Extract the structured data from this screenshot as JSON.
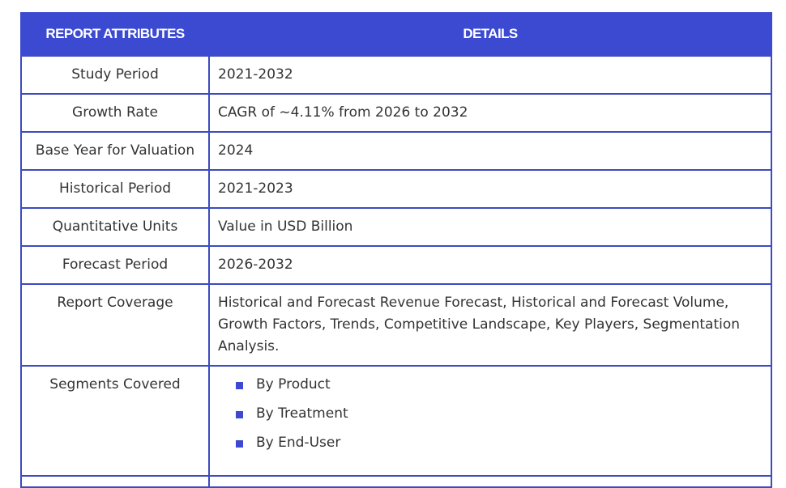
{
  "headers": {
    "attributes": "REPORT ATTRIBUTES",
    "details": "DETAILS"
  },
  "rows": [
    {
      "attribute": "Study Period",
      "detail": "2021-2032"
    },
    {
      "attribute": "Growth Rate",
      "detail": "CAGR of ~4.11% from 2026 to 2032"
    },
    {
      "attribute": "Base Year for Valuation",
      "detail": "2024"
    },
    {
      "attribute": "Historical Period",
      "detail": "2021-2023"
    },
    {
      "attribute": "Quantitative Units",
      "detail": "Value in USD Billion"
    },
    {
      "attribute": "Forecast Period",
      "detail": "2026-2032"
    },
    {
      "attribute": "Report Coverage",
      "detail": "Historical and Forecast Revenue Forecast, Historical and Forecast Volume, Growth Factors, Trends, Competitive Landscape, Key Players, Segmentation Analysis."
    }
  ],
  "segments": {
    "attribute": "Segments Covered",
    "items": [
      "By Product",
      "By Treatment",
      "By End-User"
    ]
  },
  "colors": {
    "header_bg": "#3b4ad1",
    "border": "#3c4bbf",
    "bullet": "#3b4ad1"
  }
}
